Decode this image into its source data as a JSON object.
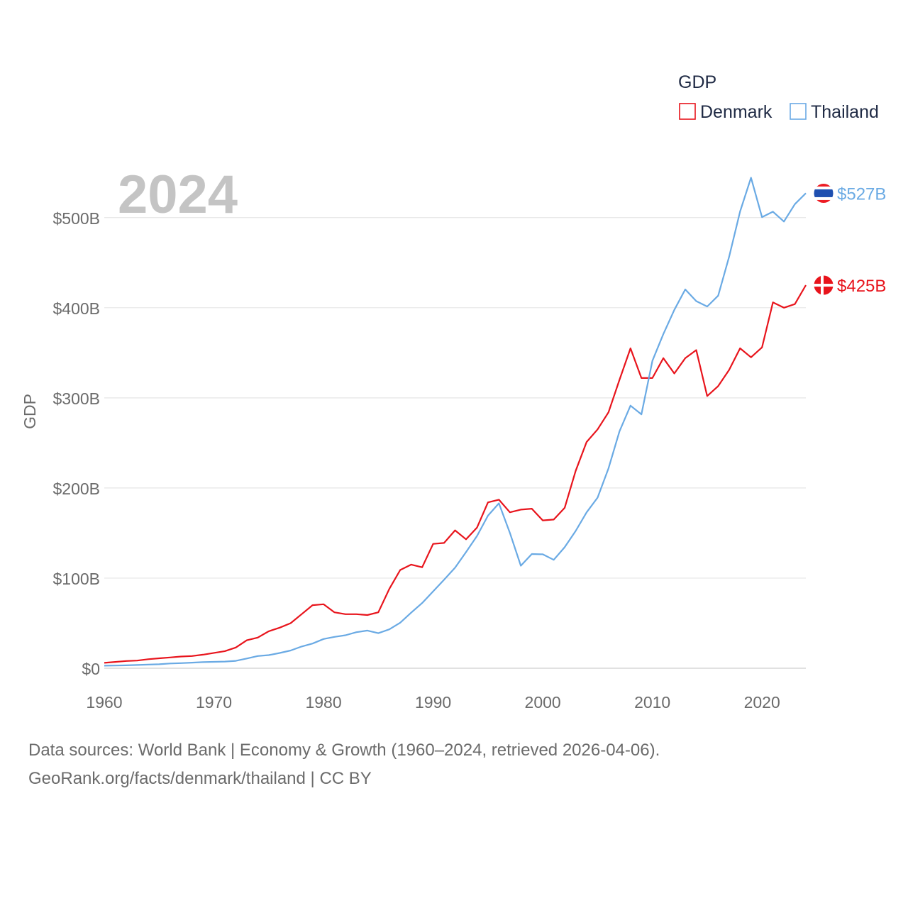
{
  "chart_data": {
    "type": "line",
    "year_label": "2024",
    "ylabel": "GDP",
    "xlabel": "",
    "ylim": [
      0,
      560
    ],
    "xlim": [
      1960,
      2024
    ],
    "y_ticks": [
      0,
      100,
      200,
      300,
      400,
      500
    ],
    "y_tick_labels": [
      "$0",
      "$100B",
      "$200B",
      "$300B",
      "$400B",
      "$500B"
    ],
    "x_ticks": [
      1960,
      1970,
      1980,
      1990,
      2000,
      2010,
      2020
    ],
    "x_tick_labels": [
      "1960",
      "1970",
      "1980",
      "1990",
      "2000",
      "2010",
      "2020"
    ],
    "legend": {
      "title": "GDP",
      "placement": "top-right"
    },
    "series": [
      {
        "name": "Denmark",
        "color": "#e8141c",
        "end_label": "$425B",
        "x": [
          1960,
          1961,
          1962,
          1963,
          1964,
          1965,
          1966,
          1967,
          1968,
          1969,
          1970,
          1971,
          1972,
          1973,
          1974,
          1975,
          1976,
          1977,
          1978,
          1979,
          1980,
          1981,
          1982,
          1983,
          1984,
          1985,
          1986,
          1987,
          1988,
          1989,
          1990,
          1991,
          1992,
          1993,
          1994,
          1995,
          1996,
          1997,
          1998,
          1999,
          2000,
          2001,
          2002,
          2003,
          2004,
          2005,
          2006,
          2007,
          2008,
          2009,
          2010,
          2011,
          2012,
          2013,
          2014,
          2015,
          2016,
          2017,
          2018,
          2019,
          2020,
          2021,
          2022,
          2023,
          2024
        ],
        "values": [
          6,
          7,
          8,
          8.5,
          10,
          11,
          12,
          13,
          13.5,
          15,
          17,
          19,
          23,
          31,
          34,
          41,
          45,
          50,
          60,
          70,
          71,
          62,
          60,
          60,
          59,
          62,
          88,
          109,
          115,
          112,
          138,
          139,
          153,
          143,
          156,
          184,
          187,
          173,
          176,
          177,
          164,
          165,
          178,
          219,
          251,
          265,
          284,
          320,
          355,
          322,
          322,
          344,
          327,
          344,
          353,
          302,
          313,
          331,
          355,
          345,
          356,
          406,
          400,
          404,
          425
        ]
      },
      {
        "name": "Thailand",
        "color": "#6aaae4",
        "end_label": "$527B",
        "x": [
          1960,
          1961,
          1962,
          1963,
          1964,
          1965,
          1966,
          1967,
          1968,
          1969,
          1970,
          1971,
          1972,
          1973,
          1974,
          1975,
          1976,
          1977,
          1978,
          1979,
          1980,
          1981,
          1982,
          1983,
          1984,
          1985,
          1986,
          1987,
          1988,
          1989,
          1990,
          1991,
          1992,
          1993,
          1994,
          1995,
          1996,
          1997,
          1998,
          1999,
          2000,
          2001,
          2002,
          2003,
          2004,
          2005,
          2006,
          2007,
          2008,
          2009,
          2010,
          2011,
          2012,
          2013,
          2014,
          2015,
          2016,
          2017,
          2018,
          2019,
          2020,
          2021,
          2022,
          2023,
          2024
        ],
        "values": [
          2.8,
          3,
          3.2,
          3.6,
          4,
          4.4,
          5.3,
          5.7,
          6.2,
          6.8,
          7.1,
          7.4,
          8.2,
          10.8,
          13.5,
          14.6,
          16.9,
          19.7,
          24.1,
          27.4,
          32.4,
          34.8,
          36.6,
          40,
          41.8,
          38.9,
          43.1,
          50.5,
          61.7,
          72.3,
          85.3,
          98.2,
          111.5,
          128.9,
          146.7,
          169.3,
          183,
          150.2,
          113.7,
          126.7,
          126.4,
          120.3,
          134.3,
          152.3,
          172.9,
          189.3,
          221.8,
          262.9,
          291.4,
          281.7,
          341.1,
          370.8,
          397.6,
          420.3,
          407.3,
          401.3,
          413.4,
          456.4,
          506.8,
          544.3,
          500.5,
          506.6,
          495.6,
          514.9,
          527
        ]
      }
    ]
  },
  "source": {
    "line1": "Data sources: World Bank | Economy & Growth (1960–2024, retrieved 2026-04-06).",
    "line2": "GeoRank.org/facts/denmark/thailand | CC BY"
  }
}
